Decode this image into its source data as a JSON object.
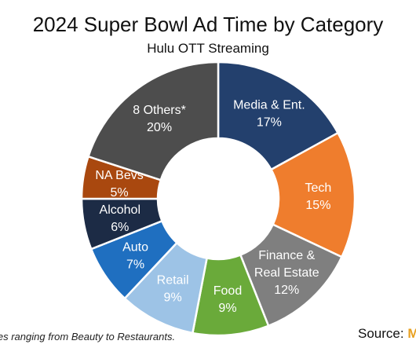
{
  "chart_data": {
    "type": "pie",
    "style": "donut",
    "title": "2024 Super Bowl Ad Time by Category",
    "subtitle": "Hulu OTT Streaming",
    "slices": [
      {
        "label": [
          "Media & Ent."
        ],
        "value_label": "17%",
        "value": 17,
        "color": "#23406d",
        "text_color": "#ffffff"
      },
      {
        "label": [
          "Tech"
        ],
        "value_label": "15%",
        "value": 15,
        "color": "#ef7d2d",
        "text_color": "#ffffff"
      },
      {
        "label": [
          "Finance &",
          "Real Estate"
        ],
        "value_label": "12%",
        "value": 12,
        "color": "#7f7f7f",
        "text_color": "#ffffff"
      },
      {
        "label": [
          "Food"
        ],
        "value_label": "9%",
        "value": 9,
        "color": "#6aaa3a",
        "text_color": "#ffffff"
      },
      {
        "label": [
          "Retail"
        ],
        "value_label": "9%",
        "value": 9,
        "color": "#9dc3e6",
        "text_color": "#ffffff"
      },
      {
        "label": [
          "Auto"
        ],
        "value_label": "7%",
        "value": 7,
        "color": "#1f6fc0",
        "text_color": "#ffffff"
      },
      {
        "label": [
          "Alcohol"
        ],
        "value_label": "6%",
        "value": 6,
        "color": "#1c2b45",
        "text_color": "#ffffff"
      },
      {
        "label": [
          "NA Bevs"
        ],
        "value_label": "5%",
        "value": 5,
        "color": "#a9480f",
        "text_color": "#ffffff"
      },
      {
        "label": [
          "8 Others*"
        ],
        "value_label": "20%",
        "value": 20,
        "color": "#4d4d4d",
        "text_color": "#ffffff"
      }
    ]
  },
  "footnote": "ies ranging from Beauty to Restaurants.",
  "source_label": "Source:",
  "source_brand": "M",
  "colors": {
    "brand": "#e8a020",
    "background": "#ffffff"
  }
}
